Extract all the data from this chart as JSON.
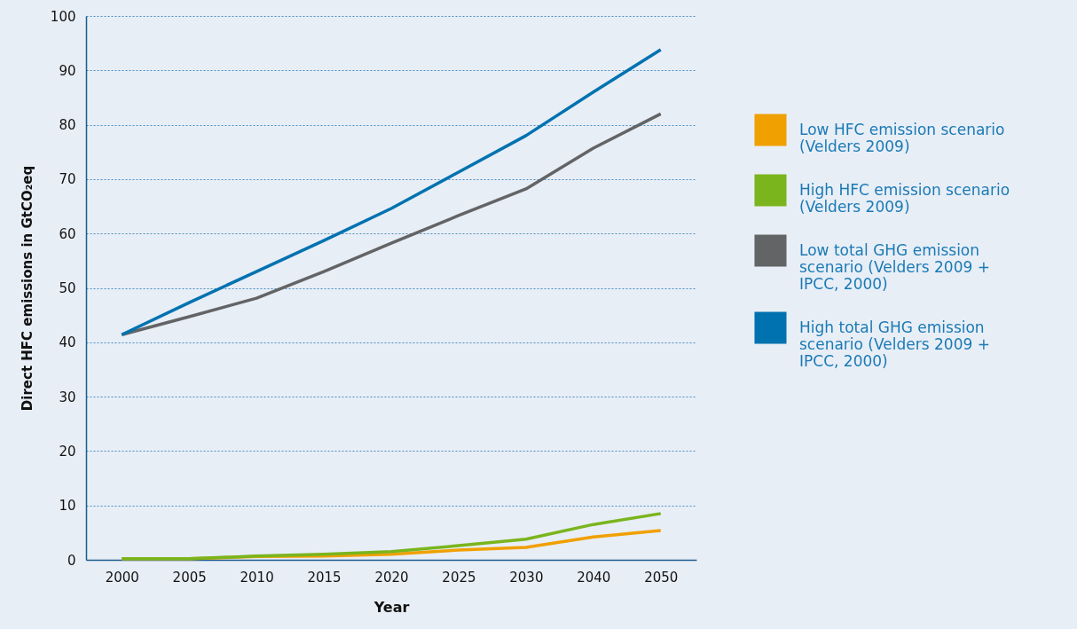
{
  "chart_data": {
    "type": "line",
    "xlabel": "Year",
    "ylabel": "Direct HFC emissions in GtCO₂eq",
    "categories": [
      "2000",
      "2005",
      "2010",
      "2015",
      "2020",
      "2025",
      "2030",
      "2040",
      "2050"
    ],
    "ylim": [
      0,
      100
    ],
    "yticks": [
      0,
      10,
      20,
      30,
      40,
      50,
      60,
      70,
      80,
      90,
      100
    ],
    "grid": "y",
    "legend": "right",
    "marker": "none",
    "line_style": "solid",
    "series": [
      {
        "name": "Low HFC emission scenario (Velders 2009)",
        "color": "#f0a000",
        "values": [
          0.2,
          0.2,
          0.6,
          0.7,
          1.0,
          1.8,
          2.3,
          4.2,
          5.4
        ]
      },
      {
        "name": "High HFC emission scenario (Velders 2009)",
        "color": "#7ab51d",
        "values": [
          0.2,
          0.2,
          0.7,
          1.0,
          1.5,
          2.6,
          3.8,
          6.5,
          8.5
        ]
      },
      {
        "name": "Low total GHG emission scenario (Velders 2009 + IPCC, 2000)",
        "color": "#636466",
        "values": [
          41.4,
          44.7,
          48.1,
          53.0,
          58.2,
          63.3,
          68.2,
          75.7,
          82.0
        ]
      },
      {
        "name": "High total GHG emission scenario (Velders 2009 + IPCC, 2000)",
        "color": "#0072b0",
        "values": [
          41.4,
          47.3,
          53.0,
          58.7,
          64.6,
          71.3,
          78.0,
          86.0,
          93.8
        ]
      }
    ]
  }
}
